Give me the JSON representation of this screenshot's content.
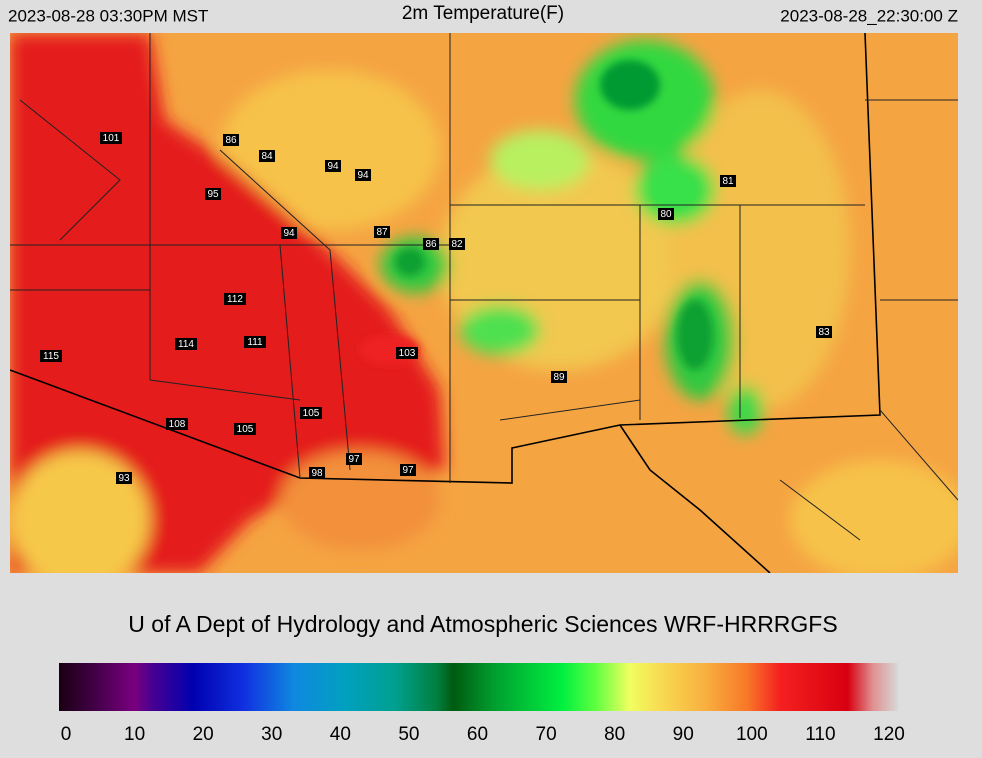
{
  "header": {
    "local_time": "2023-08-28 03:30PM MST",
    "title": "2m Temperature(F)",
    "utc_time": "2023-08-28_22:30:00 Z"
  },
  "stations": [
    101,
    86,
    84,
    94,
    94,
    95,
    94,
    87,
    86,
    82,
    81,
    80,
    112,
    114,
    111,
    103,
    115,
    89,
    83,
    105,
    108,
    105,
    97,
    97,
    98,
    93
  ],
  "credit": "U of A Dept of Hydrology and Atmospheric Sciences WRF-HRRRGFS",
  "colorbar": {
    "lim": [
      0,
      120
    ],
    "ticks": [
      0,
      10,
      20,
      30,
      40,
      50,
      60,
      70,
      80,
      90,
      100,
      110,
      120
    ]
  }
}
